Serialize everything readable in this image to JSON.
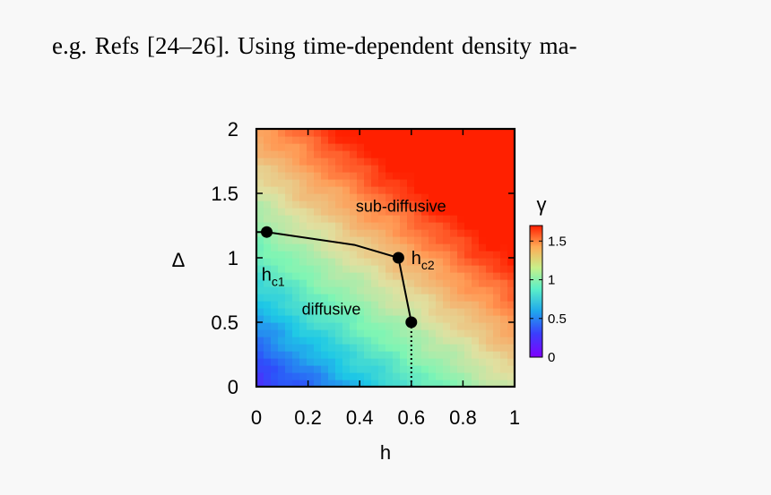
{
  "document": {
    "text_line": "e.g.   Refs [24–26].   Using time-dependent density ma-"
  },
  "chart_data": {
    "type": "heatmap",
    "xlabel": "h",
    "ylabel": "Δ",
    "xlim": [
      0,
      1
    ],
    "ylim": [
      0,
      2
    ],
    "x_ticks": [
      "0",
      "0.2",
      "0.4",
      "0.6",
      "0.8",
      "1"
    ],
    "y_ticks": [
      "0",
      "0.5",
      "1",
      "1.5",
      "2"
    ],
    "colorbar": {
      "label": "γ",
      "range": [
        0,
        1.7
      ],
      "ticks": [
        "0",
        "0.5",
        "1",
        "1.5"
      ]
    },
    "regions": [
      {
        "label": "sub-diffusive",
        "x": 0.56,
        "y": 1.4
      },
      {
        "label": "diffusive",
        "x": 0.29,
        "y": 0.6
      }
    ],
    "critical_labels": [
      {
        "main": "h",
        "sub": "c1",
        "x": 0.02,
        "y": 0.87
      },
      {
        "main": "h",
        "sub": "c2",
        "x": 0.6,
        "y": 1.0
      }
    ],
    "boundary_line": [
      {
        "x": 0.0,
        "y": 1.2
      },
      {
        "x": 0.04,
        "y": 1.2
      },
      {
        "x": 0.38,
        "y": 1.1
      },
      {
        "x": 0.55,
        "y": 1.0
      },
      {
        "x": 0.6,
        "y": 0.5
      }
    ],
    "points": [
      {
        "x": 0.04,
        "y": 1.2
      },
      {
        "x": 0.55,
        "y": 1.0
      },
      {
        "x": 0.6,
        "y": 0.5
      }
    ],
    "dotted_line": [
      {
        "x": 0.6,
        "y": 0.5
      },
      {
        "x": 0.6,
        "y": 0.0
      }
    ],
    "grid": false,
    "colormap": [
      "#7f00ff",
      "#2d50fa",
      "#1ec8e6",
      "#7ef5b4",
      "#e0e0a0",
      "#ff9a55",
      "#ff2000"
    ]
  }
}
